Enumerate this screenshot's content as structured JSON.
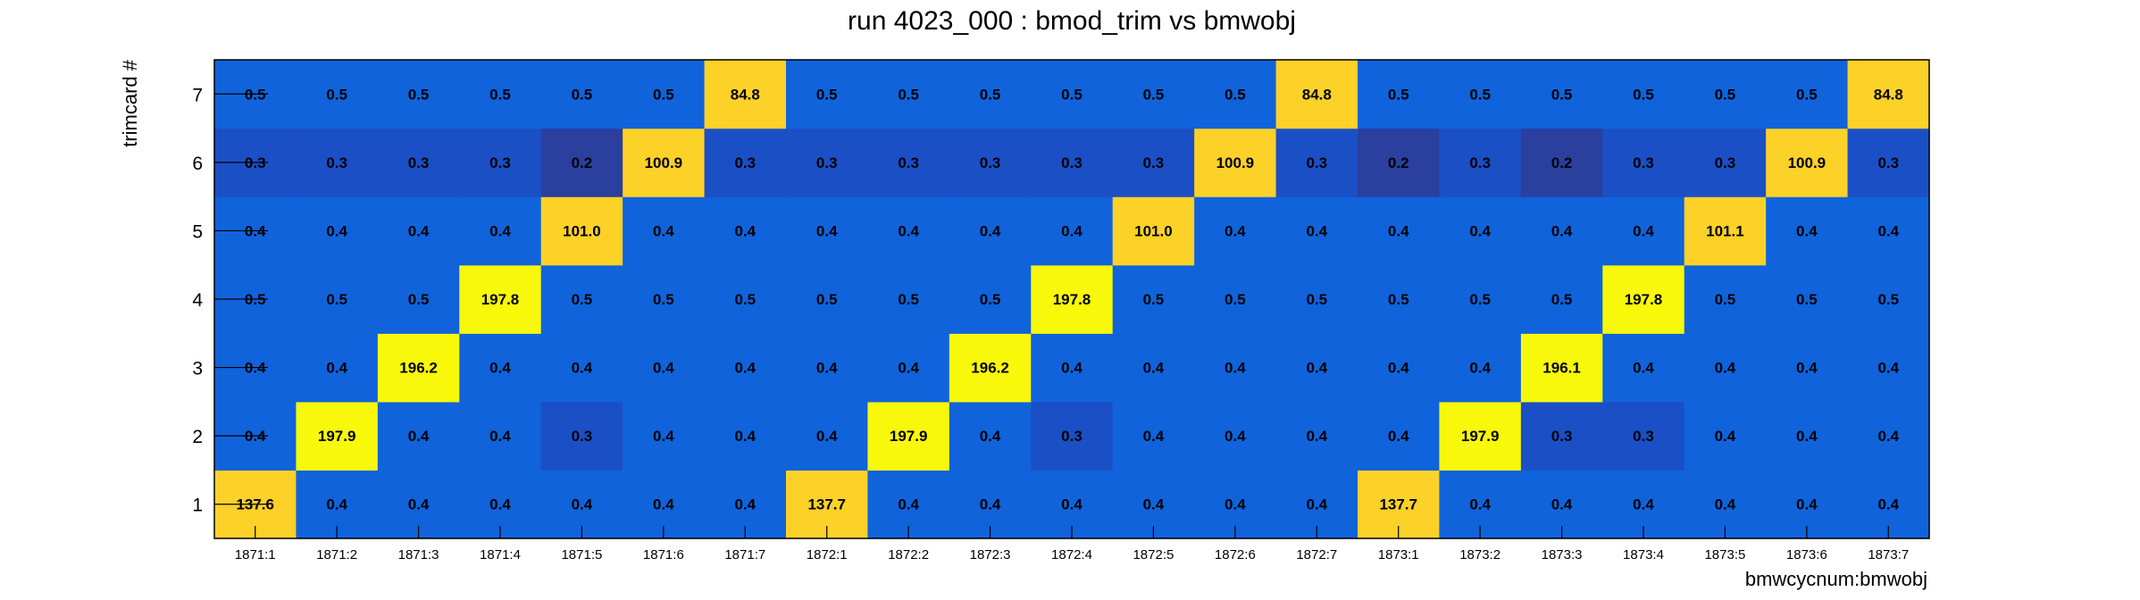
{
  "chart_data": {
    "type": "heatmap",
    "title": "run 4023_000 : bmod_trim vs bmwobj",
    "xlabel": "bmwcycnum:bmwobj",
    "ylabel": "trimcard #",
    "x_categories": [
      "1871:1",
      "1871:2",
      "1871:3",
      "1871:4",
      "1871:5",
      "1871:6",
      "1871:7",
      "1872:1",
      "1872:2",
      "1872:3",
      "1872:4",
      "1872:5",
      "1872:6",
      "1872:7",
      "1873:1",
      "1873:2",
      "1873:3",
      "1873:4",
      "1873:5",
      "1873:6",
      "1873:7"
    ],
    "y_categories": [
      "1",
      "2",
      "3",
      "4",
      "5",
      "6",
      "7"
    ],
    "values": [
      [
        "137.6",
        "0.4",
        "0.4",
        "0.4",
        "0.4",
        "0.4",
        "0.4",
        "137.7",
        "0.4",
        "0.4",
        "0.4",
        "0.4",
        "0.4",
        "0.4",
        "137.7",
        "0.4",
        "0.4",
        "0.4",
        "0.4",
        "0.4",
        "0.4"
      ],
      [
        "0.4",
        "197.9",
        "0.4",
        "0.4",
        "0.3",
        "0.4",
        "0.4",
        "0.4",
        "197.9",
        "0.4",
        "0.3",
        "0.4",
        "0.4",
        "0.4",
        "0.4",
        "197.9",
        "0.3",
        "0.3",
        "0.4",
        "0.4",
        "0.4"
      ],
      [
        "0.4",
        "0.4",
        "196.2",
        "0.4",
        "0.4",
        "0.4",
        "0.4",
        "0.4",
        "0.4",
        "196.2",
        "0.4",
        "0.4",
        "0.4",
        "0.4",
        "0.4",
        "0.4",
        "196.1",
        "0.4",
        "0.4",
        "0.4",
        "0.4"
      ],
      [
        "0.5",
        "0.5",
        "0.5",
        "197.8",
        "0.5",
        "0.5",
        "0.5",
        "0.5",
        "0.5",
        "0.5",
        "197.8",
        "0.5",
        "0.5",
        "0.5",
        "0.5",
        "0.5",
        "0.5",
        "197.8",
        "0.5",
        "0.5",
        "0.5"
      ],
      [
        "0.4",
        "0.4",
        "0.4",
        "0.4",
        "101.0",
        "0.4",
        "0.4",
        "0.4",
        "0.4",
        "0.4",
        "0.4",
        "101.0",
        "0.4",
        "0.4",
        "0.4",
        "0.4",
        "0.4",
        "0.4",
        "101.1",
        "0.4",
        "0.4"
      ],
      [
        "0.3",
        "0.3",
        "0.3",
        "0.3",
        "0.2",
        "100.9",
        "0.3",
        "0.3",
        "0.3",
        "0.3",
        "0.3",
        "0.3",
        "100.9",
        "0.3",
        "0.2",
        "0.3",
        "0.2",
        "0.3",
        "0.3",
        "100.9",
        "0.3"
      ],
      [
        "0.5",
        "0.5",
        "0.5",
        "0.5",
        "0.5",
        "0.5",
        "84.8",
        "0.5",
        "0.5",
        "0.5",
        "0.5",
        "0.5",
        "0.5",
        "84.8",
        "0.5",
        "0.5",
        "0.5",
        "0.5",
        "0.5",
        "0.5",
        "84.8"
      ]
    ],
    "colors": {
      "cell_dark": "#2a3f9e",
      "cell_mid": "#1b4fc6",
      "cell_light": "#1063db",
      "high_yellow": "#f8f80b",
      "high_orange": "#fcd128",
      "frame": "#000000"
    },
    "legend": "none",
    "grid": false
  }
}
